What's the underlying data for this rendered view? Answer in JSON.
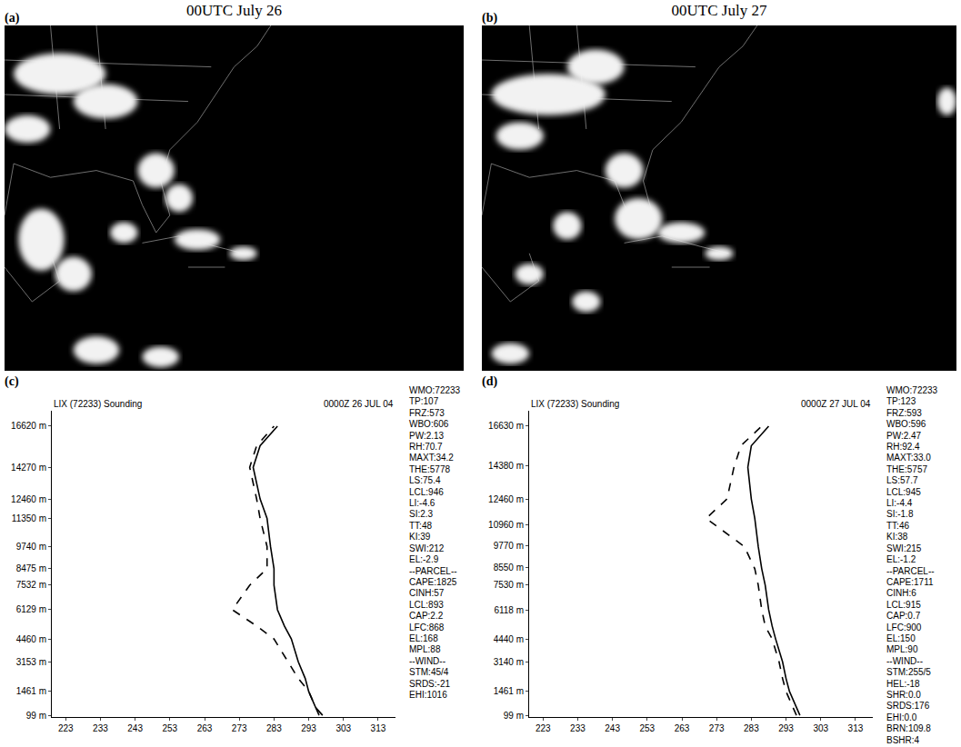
{
  "images": [
    {
      "letter": "(a)",
      "title": "00UTC July 26"
    },
    {
      "letter": "(b)",
      "title": "00UTC July 27"
    }
  ],
  "chart_data": [
    {
      "letter": "(c)",
      "type": "line",
      "title": "LIX (72233) Sounding",
      "subtitle": "0000Z 26 JUL 04",
      "y": [
        99,
        539,
        1461,
        2202,
        3153,
        4460,
        5199,
        6129,
        7532,
        8475,
        9740,
        11350,
        12460,
        14270,
        15500,
        16620
      ],
      "series": [
        {
          "color": "#000000",
          "line_style": "solid",
          "values": [
            297,
            295,
            293,
            292,
            290,
            288,
            286,
            284,
            283,
            283,
            282,
            281,
            279,
            277,
            279,
            284
          ]
        },
        {
          "color": "#000000",
          "line_style": "dashed",
          "values": [
            296,
            295,
            293,
            290,
            287,
            283,
            278,
            271,
            276,
            281,
            281,
            279,
            278,
            276,
            278,
            283
          ]
        }
      ],
      "xlim": [
        219,
        318
      ],
      "xticks": [
        223,
        233,
        243,
        253,
        263,
        273,
        283,
        293,
        303,
        313
      ],
      "ylim": [
        0,
        17500
      ],
      "yticks": [
        {
          "value": 99,
          "label": "99 m"
        },
        {
          "value": 1461,
          "label": "1461 m"
        },
        {
          "value": 3153,
          "label": "3153 m"
        },
        {
          "value": 4460,
          "label": "4460 m"
        },
        {
          "value": 6129,
          "label": "6129 m"
        },
        {
          "value": 7532,
          "label": "7532 m"
        },
        {
          "value": 8475,
          "label": "8475 m"
        },
        {
          "value": 9740,
          "label": "9740 m"
        },
        {
          "value": 11350,
          "label": "11350 m"
        },
        {
          "value": 12460,
          "label": "12460 m"
        },
        {
          "value": 14270,
          "label": "14270 m"
        },
        {
          "value": 16620,
          "label": "16620 m"
        }
      ],
      "grid": false,
      "indices": [
        "WMO:72233",
        "TP:107",
        "FRZ:573",
        "WBO:606",
        "PW:2.13",
        "RH:70.7",
        "MAXT:34.2",
        "THE:5778",
        "LS:75.4",
        "LCL:946",
        "LI:-4.6",
        "SI:2.3",
        "TT:48",
        "KI:39",
        "SWI:212",
        "EL:-2.9",
        "--PARCEL--",
        "CAPE:1825",
        "CINH:57",
        "LCL:893",
        "CAP:2.2",
        "LFC:868",
        "EL:168",
        "MPL:88",
        "--WIND--",
        "STM:45/4",
        "SRDS:-21",
        "EHI:1016"
      ]
    },
    {
      "letter": "(d)",
      "type": "line",
      "title": "LIX (72233) Sounding",
      "subtitle": "0000Z 27 JUL 04",
      "y": [
        99,
        539,
        1461,
        2202,
        3153,
        4460,
        5199,
        6129,
        7532,
        8475,
        9740,
        11350,
        12460,
        14270,
        15500,
        16620
      ],
      "series": [
        {
          "color": "#000000",
          "line_style": "solid",
          "values": [
            297,
            296,
            294,
            293,
            292,
            290,
            289,
            288,
            287,
            286,
            285,
            284,
            283,
            282,
            283,
            288
          ]
        },
        {
          "color": "#000000",
          "line_style": "dashed",
          "values": [
            296,
            295,
            293,
            292,
            291,
            289,
            287,
            286,
            285,
            284,
            281,
            270,
            276,
            278,
            280,
            286
          ]
        }
      ],
      "xlim": [
        219,
        318
      ],
      "xticks": [
        223,
        233,
        243,
        253,
        263,
        273,
        283,
        293,
        303,
        313
      ],
      "ylim": [
        0,
        17500
      ],
      "yticks": [
        {
          "value": 99,
          "label": "99 m"
        },
        {
          "value": 1461,
          "label": "1461 m"
        },
        {
          "value": 3140,
          "label": "3140 m"
        },
        {
          "value": 4440,
          "label": "4440 m"
        },
        {
          "value": 6118,
          "label": "6118 m"
        },
        {
          "value": 7530,
          "label": "7530 m"
        },
        {
          "value": 8550,
          "label": "8550 m"
        },
        {
          "value": 9770,
          "label": "9770 m"
        },
        {
          "value": 10960,
          "label": "10960 m"
        },
        {
          "value": 12460,
          "label": "12460 m"
        },
        {
          "value": 14380,
          "label": "14380 m"
        },
        {
          "value": 16630,
          "label": "16630 m"
        }
      ],
      "grid": false,
      "indices": [
        "WMO:72233",
        "TP:123",
        "FRZ:593",
        "WBO:596",
        "PW:2.47",
        "RH:92.4",
        "MAXT:33.0",
        "THE:5757",
        "LS:57.7",
        "LCL:945",
        "LI:-4.4",
        "SI:-1.8",
        "TT:46",
        "KI:38",
        "SWI:215",
        "EL:-1.2",
        "--PARCEL--",
        "CAPE:1711",
        "CINH:6",
        "LCL:915",
        "CAP:0.7",
        "LFC:900",
        "EL:150",
        "MPL:90",
        "--WIND--",
        "STM:255/5",
        "HEL:-18",
        "SHR:0.0",
        "SRDS:176",
        "EHI:0.0",
        "BRN:109.8",
        "BSHR:4"
      ]
    }
  ]
}
